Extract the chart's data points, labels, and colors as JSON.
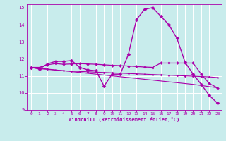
{
  "xlabel": "Windchill (Refroidissement éolien,°C)",
  "background_color": "#c8ecec",
  "grid_color": "#ffffff",
  "line_color": "#aa00aa",
  "xlim": [
    -0.5,
    23.5
  ],
  "ylim": [
    9,
    15.2
  ],
  "xticks": [
    0,
    1,
    2,
    3,
    4,
    5,
    6,
    7,
    8,
    9,
    10,
    11,
    12,
    13,
    14,
    15,
    16,
    17,
    18,
    19,
    20,
    21,
    22,
    23
  ],
  "yticks": [
    9,
    10,
    11,
    12,
    13,
    14,
    15
  ],
  "series": [
    {
      "x": [
        0,
        1,
        2,
        3,
        4,
        5,
        6,
        7,
        8,
        9,
        10,
        11,
        12,
        13,
        14,
        15,
        16,
        17,
        18,
        19,
        20,
        21,
        22,
        23
      ],
      "y": [
        11.5,
        11.4,
        11.7,
        11.85,
        11.85,
        11.9,
        11.5,
        11.35,
        11.3,
        10.4,
        11.1,
        11.1,
        12.25,
        14.3,
        14.9,
        15.0,
        14.5,
        14.0,
        13.2,
        11.8,
        11.1,
        10.5,
        9.85,
        9.4
      ],
      "marker": "D",
      "marker_size": 2.5,
      "linewidth": 1.0
    },
    {
      "x": [
        0,
        1,
        2,
        3,
        4,
        5,
        6,
        7,
        8,
        9,
        10,
        11,
        12,
        13,
        14,
        15,
        16,
        17,
        18,
        19,
        20,
        21,
        22,
        23
      ],
      "y": [
        11.5,
        11.5,
        11.65,
        11.72,
        11.68,
        11.7,
        11.72,
        11.7,
        11.68,
        11.65,
        11.62,
        11.6,
        11.58,
        11.55,
        11.52,
        11.5,
        11.75,
        11.75,
        11.75,
        11.75,
        11.75,
        11.1,
        10.55,
        10.3
      ],
      "marker": "D",
      "marker_size": 2.0,
      "linewidth": 0.9
    },
    {
      "x": [
        0,
        1,
        2,
        3,
        4,
        5,
        6,
        7,
        8,
        9,
        10,
        11,
        12,
        13,
        14,
        15,
        16,
        17,
        18,
        19,
        20,
        21,
        22,
        23
      ],
      "y": [
        11.5,
        11.42,
        11.38,
        11.34,
        11.3,
        11.28,
        11.26,
        11.24,
        11.22,
        11.2,
        11.18,
        11.16,
        11.14,
        11.12,
        11.1,
        11.08,
        11.06,
        11.04,
        11.02,
        11.0,
        10.98,
        10.96,
        10.94,
        10.9
      ],
      "marker": "D",
      "marker_size": 1.5,
      "linewidth": 0.8
    },
    {
      "x": [
        0,
        5,
        10,
        15,
        20,
        23
      ],
      "y": [
        11.5,
        11.25,
        11.0,
        10.75,
        10.5,
        10.3
      ],
      "marker": null,
      "marker_size": 0,
      "linewidth": 0.8
    }
  ]
}
